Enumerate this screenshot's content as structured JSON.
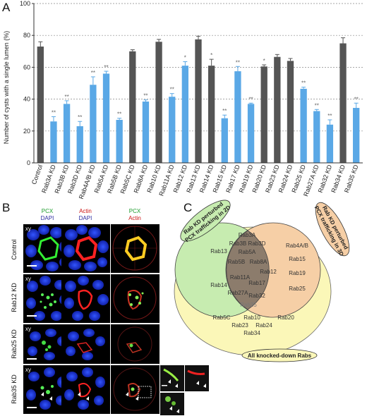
{
  "panels": {
    "a": "A",
    "b": "B",
    "c": "C"
  },
  "chart_data": {
    "type": "bar",
    "ylabel": "Number of cysts with a single lumen (%)",
    "ylim": [
      0,
      100
    ],
    "yticks": [
      "0",
      "20",
      "40",
      "60",
      "80",
      "100"
    ],
    "grid": true,
    "categories": [
      "Control",
      "Rab3A KD",
      "Rab3B KD",
      "Rab3D KD",
      "Rab4A/B KD",
      "Rab5A KD",
      "Rab5B KD",
      "Rab5C KD",
      "Rab8A KD",
      "Rab10 KD",
      "Rab11A KD",
      "Rab12 KD",
      "Rab13 KD",
      "Rab14 KD",
      "Rab15 KD",
      "Rab17 KD",
      "Rab19 KD",
      "Rab20 KD",
      "Rab23 KD",
      "Rab24 KD",
      "Rab25 KD",
      "Rab27A KD",
      "Rab32 KD",
      "Rab34 KD",
      "Rab35 KD"
    ],
    "values": [
      73,
      26,
      37,
      23,
      49,
      56,
      27,
      70,
      38.5,
      76,
      41.5,
      61,
      77.5,
      61,
      28,
      57.5,
      37,
      60.5,
      66.5,
      64,
      46.5,
      32.5,
      24,
      75,
      34.5
    ],
    "errors": [
      3,
      3,
      2,
      3,
      5,
      1.5,
      1,
      1,
      1,
      1.5,
      2,
      2.5,
      2,
      4,
      2,
      3,
      0.5,
      1,
      1.5,
      1.5,
      1,
      1,
      3,
      3.5,
      3
    ],
    "bar_colors": [
      "dark",
      "blue",
      "blue",
      "blue",
      "blue",
      "blue",
      "blue",
      "dark",
      "blue",
      "dark",
      "blue",
      "blue",
      "dark",
      "dark",
      "blue",
      "blue",
      "blue",
      "dark",
      "dark",
      "dark",
      "blue",
      "blue",
      "blue",
      "dark",
      "blue"
    ],
    "significance": [
      "",
      "**",
      "**",
      "**",
      "**",
      "**",
      "**",
      "",
      "**",
      "",
      "**",
      "*",
      "",
      "*",
      "**",
      "**",
      "**",
      "*",
      "",
      "",
      "**",
      "**",
      "**",
      "",
      "**"
    ],
    "colors": {
      "dark": "#555555",
      "blue": "#5aa8e6"
    }
  },
  "microscopy": {
    "col_headers": [
      [
        {
          "text": "PCX",
          "color": "#1a9a2a"
        },
        {
          "text": "DAPI",
          "color": "#2a2aa0"
        }
      ],
      [
        {
          "text": "Actin",
          "color": "#cc1111"
        },
        {
          "text": "DAPI",
          "color": "#2a2aa0"
        }
      ],
      [
        {
          "text": "PCX",
          "color": "#1a9a2a"
        },
        {
          "text": "Actin",
          "color": "#cc1111"
        }
      ]
    ],
    "rows": [
      "Control",
      "Rab12 KD",
      "Rab25 KD",
      "Rab35 KD"
    ],
    "xy_tag": "xy"
  },
  "venn": {
    "left_label_1": "Rab KD perturbed",
    "left_label_2": "PCX trafficking in 2D",
    "right_label_1": "Rab KD perturbed",
    "right_label_2": "PCX trafficking in 3D",
    "bottom_label": "All knocked-down Rabs",
    "left_only": [
      "Rab13",
      "Rab14"
    ],
    "right_only": [
      "Rab4A/B",
      "Rab15",
      "Rab19",
      "Rab25"
    ],
    "intersection": [
      "Rab3A",
      "Rab3B",
      "Rab3D",
      "Rab5A",
      "Rab5B",
      "Rab8A",
      "Rab12",
      "Rab11A",
      "Rab17",
      "Rab27A",
      "Rab32",
      "Rab35"
    ],
    "outer": [
      "Rab5C",
      "Rab10",
      "Rab20",
      "Rab23",
      "Rab24",
      "Rab34"
    ]
  }
}
